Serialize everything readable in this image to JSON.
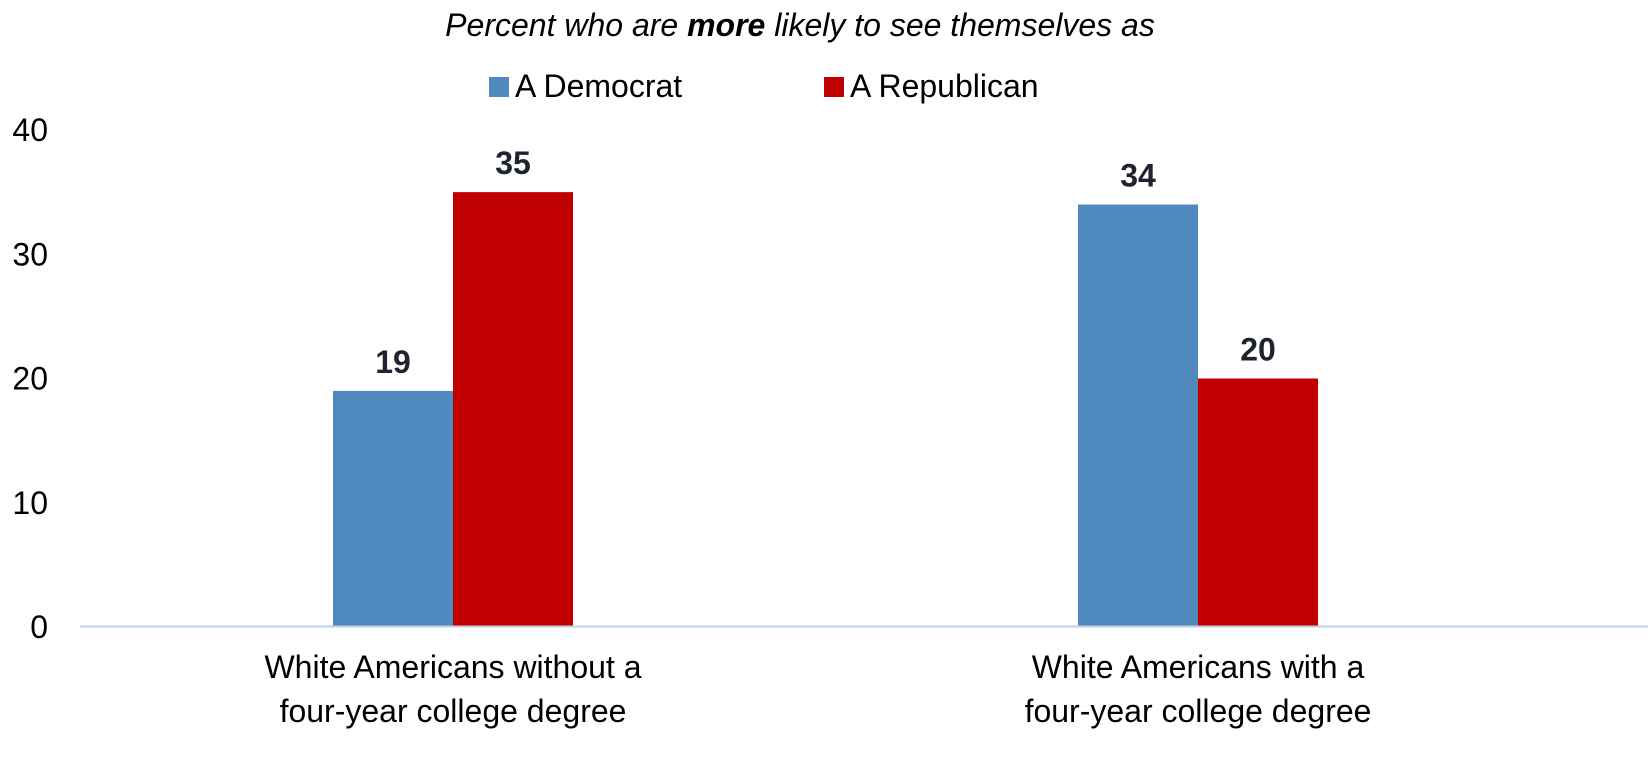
{
  "chart_data": {
    "type": "bar",
    "title": "",
    "subtitle": {
      "before": "Percent who are ",
      "emphasis": "more",
      "after": " likely to see themselves as"
    },
    "xlabel": "",
    "ylabel": "",
    "ylim": [
      0,
      40
    ],
    "yticks": [
      "0",
      "10",
      "20",
      "30",
      "40"
    ],
    "grid": false,
    "legend_position": "top-center",
    "categories": [
      [
        "White Americans without a",
        "four-year college degree"
      ],
      [
        "White Americans with a",
        "four-year college degree"
      ]
    ],
    "series": [
      {
        "name": "A Democrat",
        "color": "#4f89bd",
        "values": [
          19,
          34
        ]
      },
      {
        "name": "A Republican",
        "color": "#c00000",
        "values": [
          35,
          20
        ]
      }
    ],
    "axis_color": "#bfd0e3",
    "data_label_color": "#1f2330"
  }
}
